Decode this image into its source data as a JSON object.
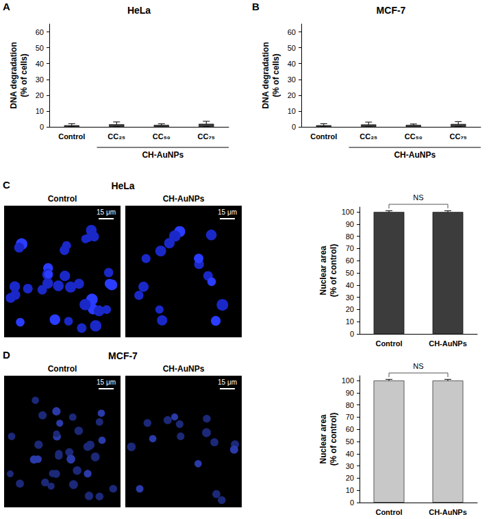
{
  "chart_data": [
    {
      "panel": "A",
      "type": "bar",
      "title": "HeLa",
      "categories": [
        "Control",
        "CC₂₅",
        "CC₅₀",
        "CC₇₅"
      ],
      "values": [
        1.0,
        1.6,
        1.2,
        1.9
      ],
      "errors": [
        1.0,
        1.5,
        0.7,
        1.6
      ],
      "color": "#3c3c3c",
      "y_label": "DNA degradation\n(% of cells)",
      "ylim": [
        0,
        65
      ],
      "yticks": [
        0,
        10,
        20,
        30,
        40,
        50,
        60
      ],
      "grid": false,
      "groups": [
        {
          "label": "CH-AuNPs",
          "categories": [
            "CC₂₅",
            "CC₅₀",
            "CC₇₅"
          ]
        }
      ]
    },
    {
      "panel": "B",
      "type": "bar",
      "title": "MCF-7",
      "categories": [
        "Control",
        "CC₂₅",
        "CC₅₀",
        "CC₇₅"
      ],
      "values": [
        1.0,
        1.5,
        1.2,
        1.8
      ],
      "errors": [
        1.0,
        1.5,
        0.6,
        1.5
      ],
      "color": "#3c3c3c",
      "y_label": "DNA degradation\n(% of cells)",
      "ylim": [
        0,
        65
      ],
      "yticks": [
        0,
        10,
        20,
        30,
        40,
        50,
        60
      ],
      "grid": false,
      "groups": [
        {
          "label": "CH-AuNPs",
          "categories": [
            "CC₂₅",
            "CC₅₀",
            "CC₇₅"
          ]
        }
      ]
    },
    {
      "panel": "C",
      "type": "bar",
      "title": "HeLa",
      "categories": [
        "Control",
        "CH-AuNPs"
      ],
      "values": [
        100,
        100
      ],
      "errors": [
        1,
        1
      ],
      "color": "#3c3c3c",
      "y_label": "Nuclear area\n(% of control)",
      "ylim": [
        0,
        104
      ],
      "yticks": [
        0,
        10,
        20,
        30,
        40,
        50,
        60,
        70,
        80,
        90,
        100
      ],
      "grid": false,
      "significance": {
        "label": "NS",
        "between": [
          "Control",
          "CH-AuNPs"
        ]
      },
      "images": [
        {
          "label": "Control",
          "scale_bar": "15 μm"
        },
        {
          "label": "CH-AuNPs",
          "scale_bar": "15 μm"
        }
      ]
    },
    {
      "panel": "D",
      "type": "bar",
      "title": "MCF-7",
      "categories": [
        "Control",
        "CH-AuNPs"
      ],
      "values": [
        100,
        100
      ],
      "errors": [
        1,
        1
      ],
      "color": "#c8c8c8",
      "y_label": "Nuclear area\n(% of control)",
      "ylim": [
        0,
        104
      ],
      "yticks": [
        0,
        10,
        20,
        30,
        40,
        50,
        60,
        70,
        80,
        90,
        100
      ],
      "grid": false,
      "significance": {
        "label": "NS",
        "between": [
          "Control",
          "CH-AuNPs"
        ]
      },
      "images": [
        {
          "label": "Control",
          "scale_bar": "15 μm"
        },
        {
          "label": "CH-AuNPs",
          "scale_bar": "15 μm"
        }
      ]
    }
  ]
}
